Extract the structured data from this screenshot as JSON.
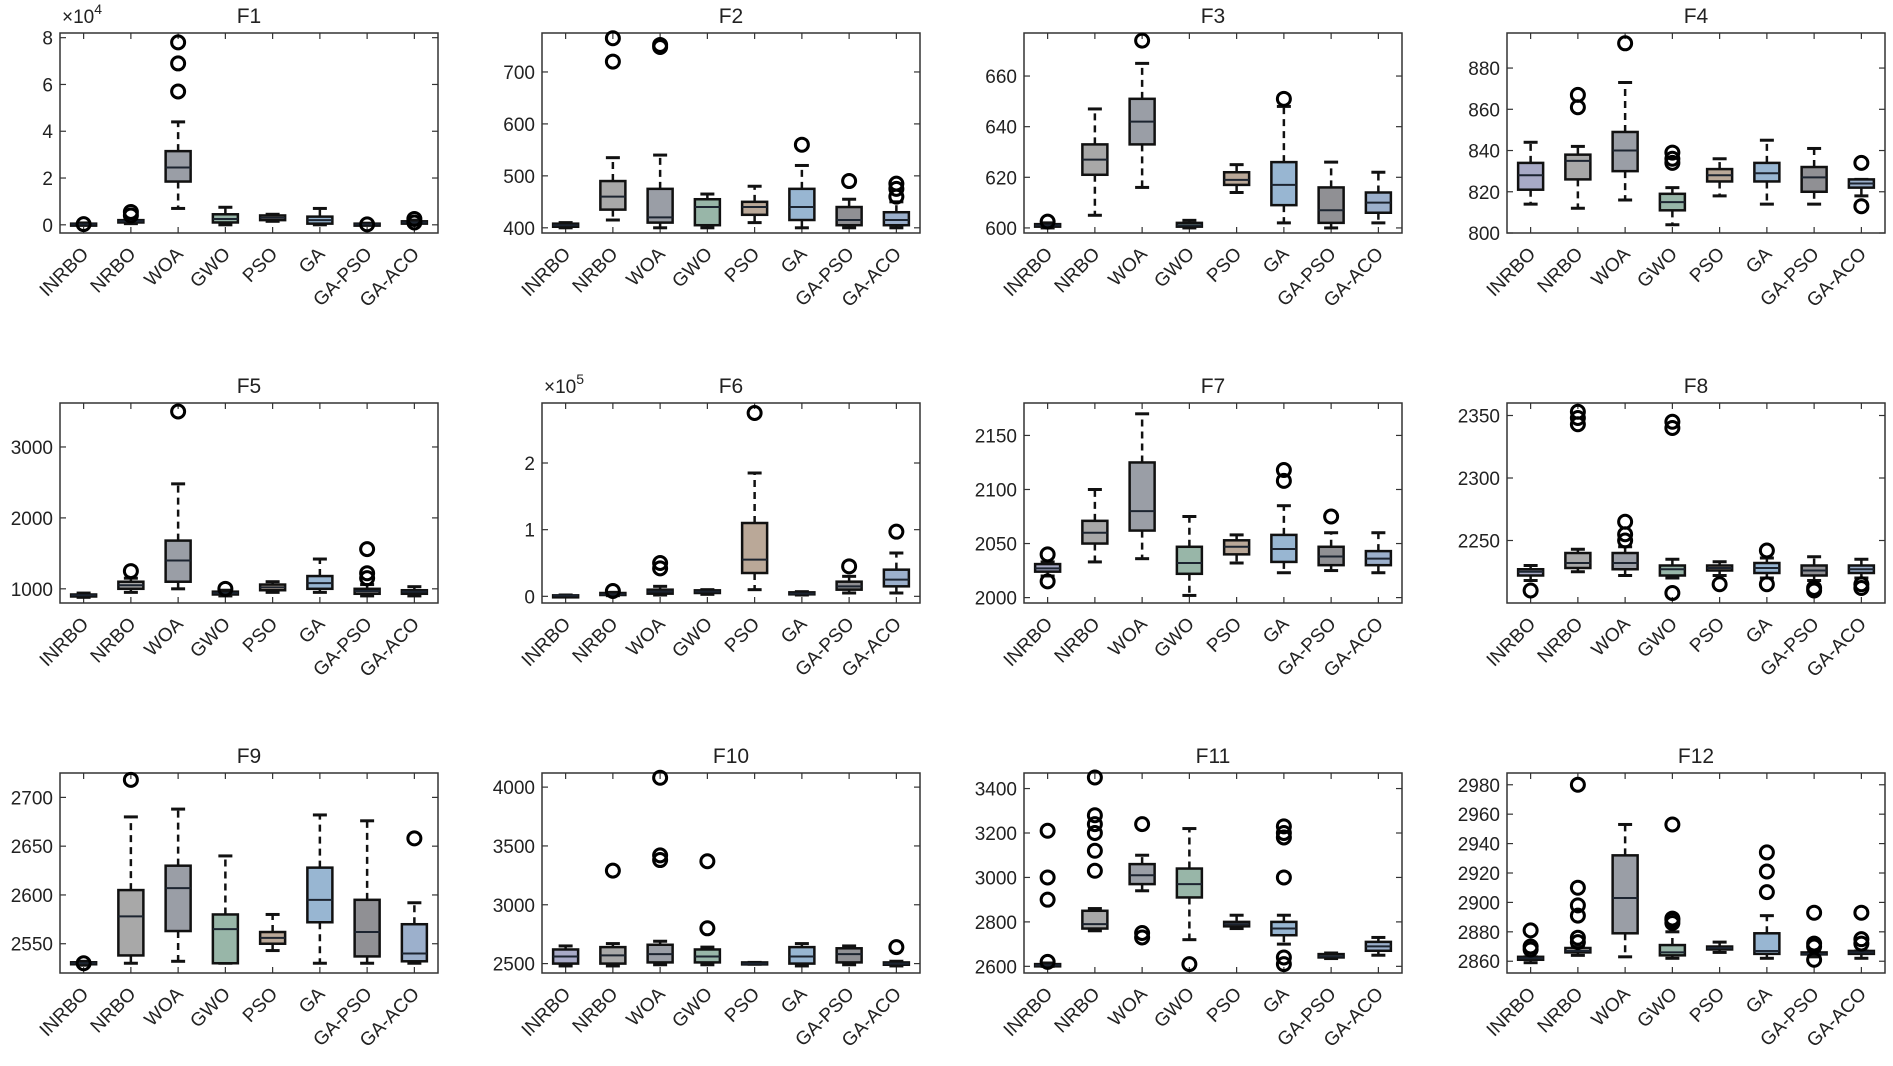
{
  "chart_data": {
    "type": "boxplot",
    "categories": [
      "INRBO",
      "NRBO",
      "WOA",
      "GWO",
      "PSO",
      "GA",
      "GA-PSO",
      "GA-ACO"
    ],
    "colors": [
      "#a8aac6",
      "#a8a8a8",
      "#9a9ea6",
      "#98b6a8",
      "#baa898",
      "#98b6d2",
      "#909094",
      "#9cb0cc"
    ],
    "stat_order": [
      "q1",
      "median",
      "q3",
      "whisker_low",
      "whisker_high",
      "outliers"
    ],
    "panels": [
      {
        "title": "F1",
        "multiplier": "×10",
        "exponent": "4",
        "ylim": [
          -0.35,
          8.2
        ],
        "yticks": [
          0,
          2,
          4,
          6,
          8
        ],
        "boxes": [
          [
            0,
            0.02,
            0.05,
            0,
            0.08,
            [
              0.03
            ]
          ],
          [
            0.1,
            0.15,
            0.2,
            0.05,
            0.25,
            [
              0.4,
              0.55
            ]
          ],
          [
            1.85,
            2.45,
            3.15,
            0.7,
            4.4,
            [
              5.7,
              6.9,
              7.8
            ]
          ],
          [
            0.1,
            0.25,
            0.45,
            0,
            0.75,
            []
          ],
          [
            0.2,
            0.3,
            0.4,
            0.15,
            0.45,
            []
          ],
          [
            0.05,
            0.2,
            0.35,
            0,
            0.7,
            []
          ],
          [
            0,
            0.02,
            0.05,
            0,
            0.07,
            [
              0.02
            ]
          ],
          [
            0.05,
            0.1,
            0.15,
            0,
            0.2,
            [
              0.1,
              0.25
            ]
          ]
        ]
      },
      {
        "title": "F2",
        "ylim": [
          390,
          775
        ],
        "yticks": [
          400,
          500,
          600,
          700
        ],
        "boxes": [
          [
            402,
            405,
            408,
            400,
            410,
            []
          ],
          [
            435,
            460,
            490,
            415,
            535,
            [
              720,
              765
            ]
          ],
          [
            410,
            420,
            475,
            400,
            540,
            [
              748,
              752
            ]
          ],
          [
            405,
            440,
            455,
            400,
            465,
            []
          ],
          [
            425,
            440,
            450,
            410,
            480,
            []
          ],
          [
            415,
            440,
            475,
            400,
            520,
            [
              560
            ]
          ],
          [
            405,
            415,
            440,
            400,
            455,
            [
              490
            ]
          ],
          [
            405,
            415,
            430,
            400,
            450,
            [
              460,
              475,
              485
            ]
          ]
        ]
      },
      {
        "title": "F3",
        "ylim": [
          598,
          677
        ],
        "yticks": [
          600,
          620,
          640,
          660
        ],
        "boxes": [
          [
            600.5,
            601,
            601.5,
            600,
            602,
            [
              602.5
            ]
          ],
          [
            621,
            627,
            633,
            605,
            647,
            []
          ],
          [
            633,
            642,
            651,
            616,
            665,
            [
              674
            ]
          ],
          [
            600.5,
            601,
            602,
            600,
            603,
            []
          ],
          [
            617,
            619,
            622,
            614,
            625,
            []
          ],
          [
            609,
            617,
            626,
            602,
            648,
            [
              651
            ]
          ],
          [
            602,
            607,
            616,
            600,
            626,
            []
          ],
          [
            606,
            610,
            614,
            602,
            622,
            []
          ]
        ]
      },
      {
        "title": "F4",
        "ylim": [
          800,
          897
        ],
        "yticks": [
          800,
          820,
          840,
          860,
          880
        ],
        "boxes": [
          [
            821,
            828,
            834,
            814,
            844,
            []
          ],
          [
            826,
            835,
            838,
            812,
            842,
            [
              861,
              867
            ]
          ],
          [
            830,
            840,
            849,
            816,
            873,
            [
              892
            ]
          ],
          [
            811,
            815,
            819,
            804,
            822,
            [
              834,
              836,
              839
            ]
          ],
          [
            825,
            828,
            831,
            818,
            836,
            []
          ],
          [
            825,
            829,
            834,
            814,
            845,
            []
          ],
          [
            820,
            827,
            832,
            814,
            841,
            []
          ],
          [
            822,
            824,
            826,
            818,
            826,
            [
              813,
              834
            ]
          ]
        ]
      },
      {
        "title": "F5",
        "ylim": [
          800,
          3620
        ],
        "yticks": [
          1000,
          2000,
          3000
        ],
        "boxes": [
          [
            900,
            910,
            920,
            880,
            940,
            []
          ],
          [
            1000,
            1050,
            1100,
            950,
            1150,
            [
              1250
            ]
          ],
          [
            1100,
            1400,
            1680,
            1000,
            2480,
            [
              3500
            ]
          ],
          [
            920,
            940,
            960,
            900,
            980,
            [
              1000
            ]
          ],
          [
            980,
            1020,
            1060,
            950,
            1100,
            []
          ],
          [
            1000,
            1080,
            1180,
            950,
            1420,
            []
          ],
          [
            930,
            970,
            1000,
            900,
            1060,
            [
              1150,
              1220,
              1560
            ]
          ],
          [
            930,
            960,
            980,
            900,
            1030,
            []
          ]
        ]
      },
      {
        "title": "F6",
        "multiplier": "×10",
        "exponent": "5",
        "ylim": [
          -0.1,
          2.9
        ],
        "yticks": [
          0,
          1,
          2
        ],
        "boxes": [
          [
            0.005,
            0.01,
            0.015,
            0,
            0.02,
            []
          ],
          [
            0.02,
            0.03,
            0.05,
            0.01,
            0.06,
            [
              0.08
            ]
          ],
          [
            0.04,
            0.07,
            0.1,
            0.02,
            0.15,
            [
              0.42,
              0.5
            ]
          ],
          [
            0.05,
            0.07,
            0.09,
            0.03,
            0.1,
            []
          ],
          [
            0.35,
            0.55,
            1.1,
            0.1,
            1.85,
            [
              2.75
            ]
          ],
          [
            0.03,
            0.04,
            0.06,
            0.02,
            0.07,
            []
          ],
          [
            0.1,
            0.15,
            0.22,
            0.05,
            0.3,
            [
              0.45
            ]
          ],
          [
            0.15,
            0.25,
            0.4,
            0.05,
            0.65,
            [
              0.97
            ]
          ]
        ]
      },
      {
        "title": "F7",
        "ylim": [
          1995,
          2180
        ],
        "yticks": [
          2000,
          2050,
          2100,
          2150
        ],
        "boxes": [
          [
            2024,
            2027,
            2031,
            2020,
            2033,
            [
              2015,
              2040
            ]
          ],
          [
            2050,
            2060,
            2071,
            2033,
            2100,
            []
          ],
          [
            2062,
            2080,
            2125,
            2036,
            2170,
            []
          ],
          [
            2022,
            2032,
            2047,
            2002,
            2075,
            []
          ],
          [
            2040,
            2047,
            2053,
            2032,
            2058,
            []
          ],
          [
            2033,
            2045,
            2058,
            2023,
            2085,
            [
              2108,
              2118
            ]
          ],
          [
            2030,
            2038,
            2047,
            2025,
            2060,
            [
              2075
            ]
          ],
          [
            2030,
            2036,
            2043,
            2023,
            2060,
            []
          ]
        ]
      },
      {
        "title": "F8",
        "ylim": [
          2200,
          2360
        ],
        "yticks": [
          2250,
          2300,
          2350
        ],
        "boxes": [
          [
            2222,
            2225,
            2227,
            2218,
            2230,
            [
              2210
            ]
          ],
          [
            2228,
            2232,
            2240,
            2225,
            2243,
            [
              2343,
              2348,
              2353
            ]
          ],
          [
            2227,
            2232,
            2240,
            2222,
            2245,
            [
              2250,
              2255,
              2265
            ]
          ],
          [
            2222,
            2227,
            2230,
            2220,
            2235,
            [
              2208,
              2340,
              2345
            ]
          ],
          [
            2226,
            2228,
            2230,
            2222,
            2233,
            [
              2215
            ]
          ],
          [
            2224,
            2228,
            2232,
            2220,
            2236,
            [
              2215,
              2242
            ]
          ],
          [
            2222,
            2226,
            2230,
            2218,
            2237,
            [
              2210,
              2212
            ]
          ],
          [
            2224,
            2227,
            2230,
            2220,
            2235,
            [
              2212,
              2215
            ]
          ]
        ]
      },
      {
        "title": "F9",
        "ylim": [
          2520,
          2725
        ],
        "yticks": [
          2550,
          2600,
          2650,
          2700
        ],
        "boxes": [
          [
            2529,
            2530,
            2531,
            2528,
            2532,
            [
              2530
            ]
          ],
          [
            2538,
            2578,
            2605,
            2530,
            2680,
            [
              2718
            ]
          ],
          [
            2563,
            2607,
            2630,
            2532,
            2688,
            []
          ],
          [
            2530,
            2565,
            2580,
            2530,
            2640,
            []
          ],
          [
            2550,
            2556,
            2562,
            2543,
            2580,
            []
          ],
          [
            2572,
            2595,
            2628,
            2530,
            2682,
            []
          ],
          [
            2537,
            2562,
            2595,
            2530,
            2676,
            []
          ],
          [
            2532,
            2540,
            2570,
            2530,
            2592,
            [
              2658
            ]
          ]
        ]
      },
      {
        "title": "F10",
        "ylim": [
          2420,
          4120
        ],
        "yticks": [
          2500,
          3000,
          3500,
          4000
        ],
        "boxes": [
          [
            2500,
            2560,
            2620,
            2480,
            2650,
            []
          ],
          [
            2500,
            2570,
            2640,
            2480,
            2670,
            [
              3290
            ]
          ],
          [
            2510,
            2580,
            2660,
            2490,
            2690,
            [
              3380,
              3420,
              4080
            ]
          ],
          [
            2510,
            2560,
            2620,
            2490,
            2640,
            [
              2800,
              3370
            ]
          ],
          [
            2500,
            2500,
            2510,
            2495,
            2510,
            []
          ],
          [
            2500,
            2560,
            2640,
            2480,
            2670,
            []
          ],
          [
            2510,
            2580,
            2630,
            2490,
            2650,
            []
          ],
          [
            2490,
            2500,
            2510,
            2480,
            2520,
            [
              2640
            ]
          ]
        ]
      },
      {
        "title": "F11",
        "ylim": [
          2570,
          3470
        ],
        "yticks": [
          2600,
          2800,
          3000,
          3200,
          3400
        ],
        "boxes": [
          [
            2600,
            2605,
            2610,
            2600,
            2615,
            [
              2620,
              2900,
              3000,
              3210
            ]
          ],
          [
            2770,
            2790,
            2850,
            2760,
            2860,
            [
              3030,
              3120,
              3200,
              3240,
              3280,
              3450
            ]
          ],
          [
            2970,
            3010,
            3060,
            2940,
            3100,
            [
              2730,
              2750,
              3240
            ]
          ],
          [
            2910,
            2970,
            3040,
            2720,
            3220,
            [
              2610
            ]
          ],
          [
            2780,
            2790,
            2800,
            2770,
            2830,
            []
          ],
          [
            2740,
            2770,
            2800,
            2700,
            2830,
            [
              2610,
              2640,
              3000,
              3180,
              3200,
              3230
            ]
          ],
          [
            2640,
            2645,
            2655,
            2635,
            2660,
            []
          ],
          [
            2670,
            2690,
            2710,
            2650,
            2730,
            []
          ]
        ]
      },
      {
        "title": "F12",
        "ylim": [
          2852,
          2988
        ],
        "yticks": [
          2860,
          2880,
          2900,
          2920,
          2940,
          2960,
          2980
        ],
        "boxes": [
          [
            2861,
            2862,
            2863,
            2859,
            2863,
            [
              2868,
              2870,
              2881
            ]
          ],
          [
            2866,
            2867,
            2869,
            2864,
            2870,
            [
              2873,
              2876,
              2891,
              2898,
              2910,
              2980
            ]
          ],
          [
            2879,
            2903,
            2932,
            2863,
            2953,
            []
          ],
          [
            2864,
            2866,
            2871,
            2862,
            2880,
            [
              2886,
              2888,
              2889,
              2953
            ]
          ],
          [
            2868,
            2869,
            2870,
            2866,
            2873,
            []
          ],
          [
            2865,
            2867,
            2879,
            2862,
            2891,
            [
              2907,
              2921,
              2934
            ]
          ],
          [
            2865,
            2865,
            2866,
            2863,
            2866,
            [
              2861,
              2870,
              2872,
              2893
            ]
          ],
          [
            2865,
            2866,
            2867,
            2862,
            2867,
            [
              2872,
              2875,
              2893
            ]
          ]
        ]
      }
    ]
  }
}
